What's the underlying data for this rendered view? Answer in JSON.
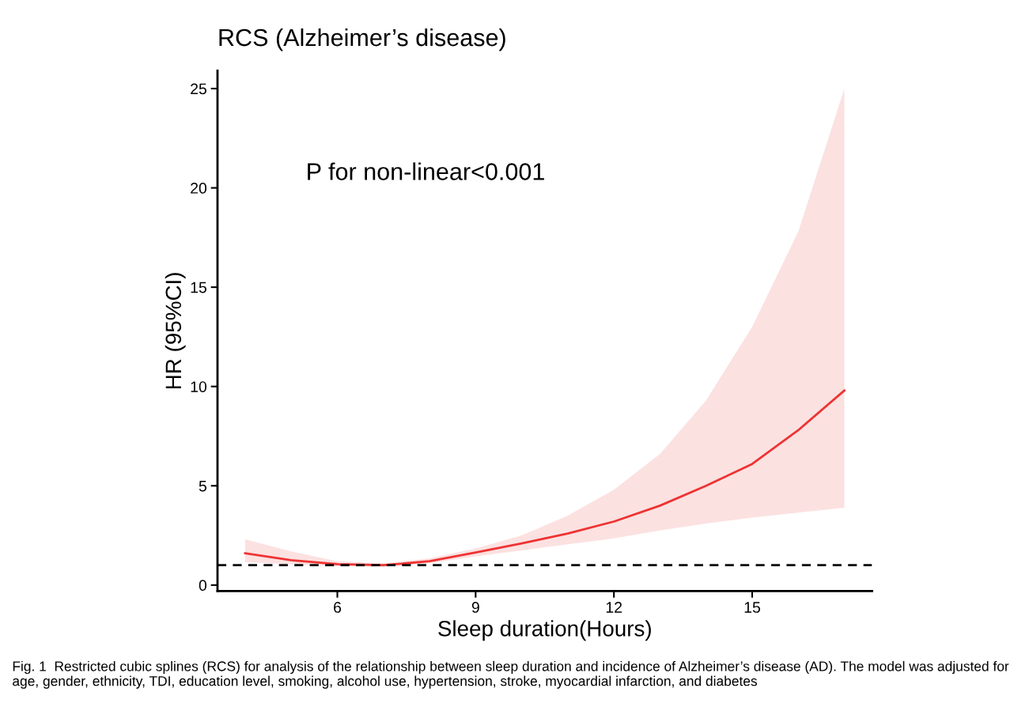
{
  "chart_data": {
    "type": "line",
    "title": "RCS (Alzheimer’s disease)",
    "xlabel": "Sleep duration(Hours)",
    "ylabel": "HR (95%CI)",
    "x": [
      4,
      5,
      6,
      7,
      8,
      9,
      10,
      11,
      12,
      13,
      14,
      15,
      16,
      17
    ],
    "series": [
      {
        "color": "#ee3333",
        "values": [
          1.6,
          1.25,
          1.05,
          1.0,
          1.2,
          1.64,
          2.1,
          2.6,
          3.2,
          4.0,
          5.0,
          6.1,
          7.8,
          9.8
        ],
        "lower": [
          1.15,
          1.05,
          0.95,
          0.92,
          1.1,
          1.45,
          1.75,
          2.05,
          2.35,
          2.75,
          3.1,
          3.4,
          3.65,
          3.9
        ],
        "upper": [
          2.3,
          1.7,
          1.2,
          1.1,
          1.35,
          1.85,
          2.5,
          3.5,
          4.8,
          6.6,
          9.3,
          13.0,
          17.8,
          25.0
        ]
      }
    ],
    "xlim": [
      3.4,
      17.6
    ],
    "xticks": [
      6,
      9,
      12,
      15
    ],
    "ylim": [
      -0.3,
      25.9
    ],
    "yticks": [
      0,
      5,
      10,
      15,
      20,
      25
    ],
    "ref_lines": [
      {
        "axis": "y",
        "value": 1,
        "color": "#000000",
        "line_style": "dashed"
      }
    ],
    "grid": false,
    "legend": false,
    "annotations": [
      "P for non-linear<0.001",
      "Fig. 1  Restricted cubic splines (RCS) for analysis of the relationship between sleep duration and incidence of Alzheimer’s disease (AD). The model was adjusted for age, gender, ethnicity, TDI, education level, smoking, alcohol use, hypertension, stroke, myocardial infarction, and diabetes"
    ]
  }
}
